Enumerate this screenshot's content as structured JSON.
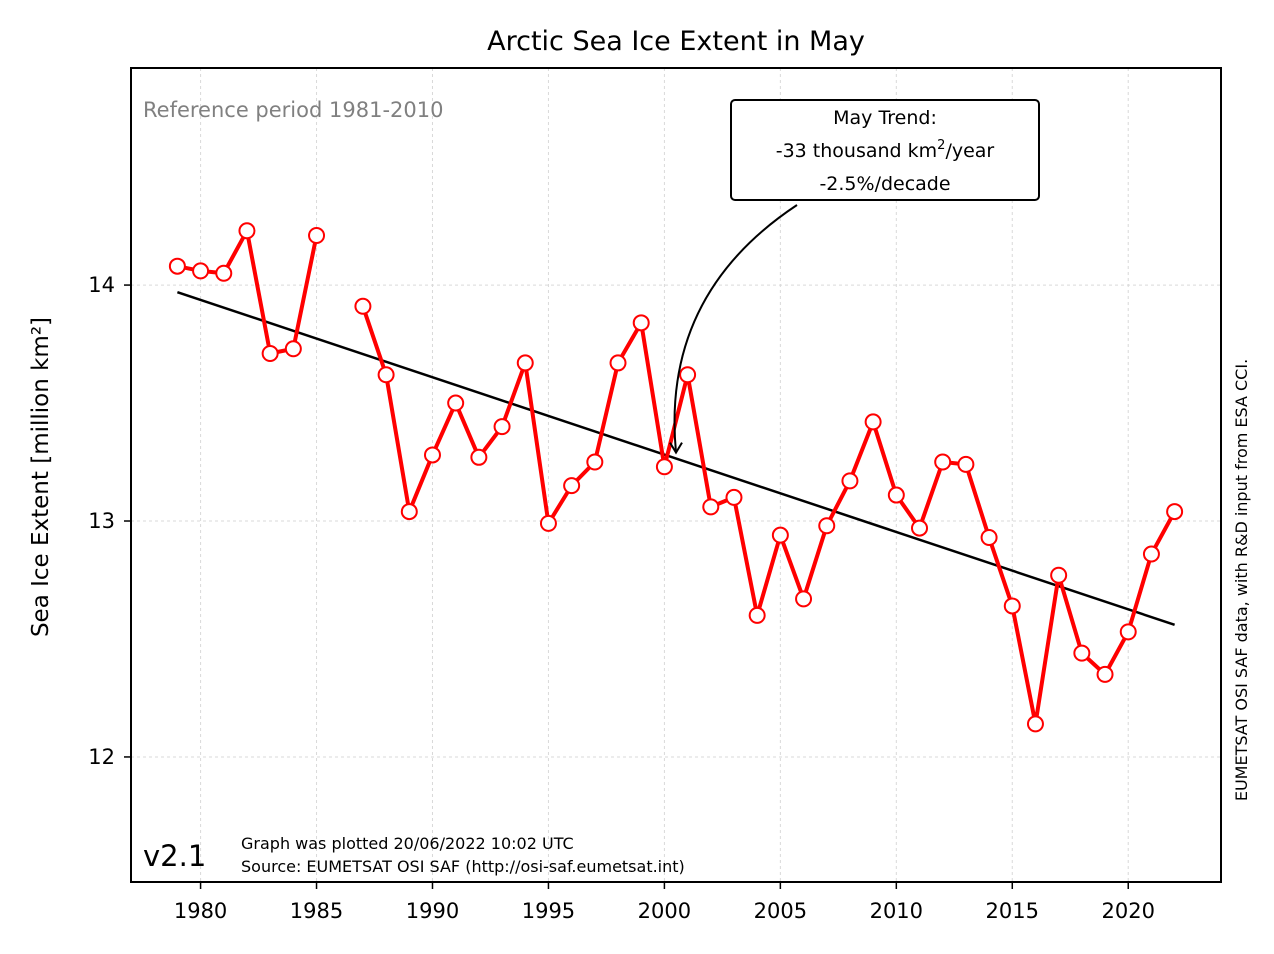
{
  "chart_data": {
    "type": "line",
    "title": "Arctic Sea Ice Extent in May",
    "ylabel": "Sea Ice Extent [million km²]",
    "xlabel": "",
    "xlim": [
      1977,
      2024
    ],
    "ylim": [
      11.47,
      14.92
    ],
    "xticks": [
      1980,
      1985,
      1990,
      1995,
      2000,
      2005,
      2010,
      2015,
      2020
    ],
    "yticks": [
      12,
      13,
      14
    ],
    "grid": true,
    "series": [
      {
        "color": "#ff0000",
        "marker": "open-circle",
        "segments": [
          {
            "x": [
              1979,
              1980,
              1981,
              1982,
              1983,
              1984,
              1985
            ],
            "y": [
              14.08,
              14.06,
              14.05,
              14.23,
              13.71,
              13.73,
              14.21
            ]
          },
          {
            "x": [
              1987,
              1988,
              1989,
              1990,
              1991,
              1992,
              1993,
              1994,
              1995,
              1996,
              1997,
              1998,
              1999,
              2000,
              2001,
              2002,
              2003,
              2004,
              2005,
              2006,
              2007,
              2008,
              2009,
              2010,
              2011,
              2012,
              2013,
              2014,
              2015,
              2016,
              2017,
              2018,
              2019,
              2020,
              2021,
              2022
            ],
            "y": [
              13.91,
              13.62,
              13.04,
              13.28,
              13.5,
              13.27,
              13.4,
              13.67,
              12.99,
              13.15,
              13.25,
              13.67,
              13.84,
              13.23,
              13.62,
              13.06,
              13.1,
              12.6,
              12.94,
              12.67,
              12.98,
              13.17,
              13.42,
              13.11,
              12.97,
              13.25,
              13.24,
              12.93,
              12.64,
              12.14,
              12.77,
              12.44,
              12.35,
              12.53,
              12.86,
              13.04
            ]
          }
        ]
      },
      {
        "color": "#000000",
        "kind": "trend",
        "x": [
          1979,
          2022
        ],
        "y": [
          13.97,
          12.56
        ]
      }
    ],
    "annotations": {
      "reference": "Reference period 1981-2010",
      "trend_line1": "May Trend:",
      "trend_line2_prefix": "-33 thousand km",
      "trend_line2_sup": "2",
      "trend_line2_suffix": "/year",
      "trend_line3": "-2.5%/decade",
      "arrow_target": {
        "x": 2000.5,
        "y": 13.29
      },
      "version": "v2.1",
      "plotted": "Graph was plotted 20/06/2022 10:02 UTC",
      "source": "Source: EUMETSAT OSI SAF (http://osi-saf.eumetsat.int)",
      "credit": "EUMETSAT OSI SAF data, with R&D input from ESA CCI."
    }
  }
}
